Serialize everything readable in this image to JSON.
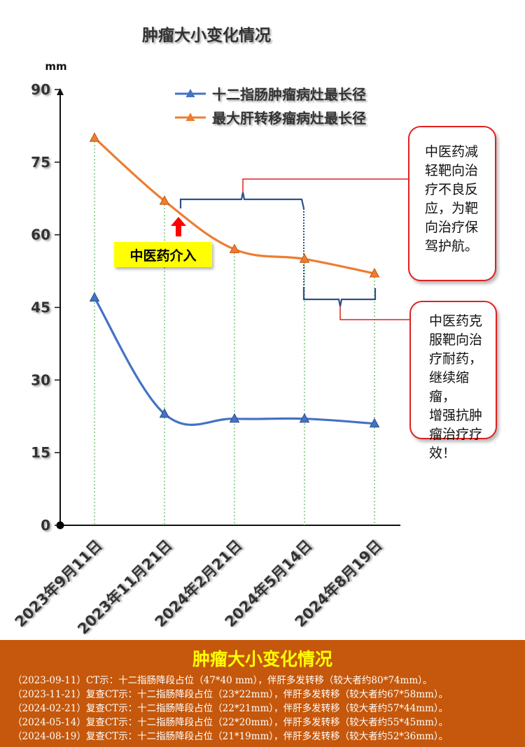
{
  "chart_data": {
    "type": "line",
    "title": "肿瘤大小变化情况",
    "ylabel": "mm",
    "ylim": [
      0,
      90
    ],
    "yticks": [
      0,
      15,
      30,
      45,
      60,
      75,
      90
    ],
    "categories": [
      "2023年9月11日",
      "2023年11月21日",
      "2024年2月21日",
      "2024年5月14日",
      "2024年8月19日"
    ],
    "series": [
      {
        "name": "十二指肠肿瘤病灶最长径",
        "color": "#4472c4",
        "values": [
          47,
          23,
          22,
          22,
          21
        ]
      },
      {
        "name": "最大肝转移瘤病灶最长径",
        "color": "#ed7d31",
        "values": [
          80,
          67,
          57,
          55,
          52
        ]
      }
    ],
    "legend_position": "top-center",
    "grid": false,
    "annotations": {
      "tcm_intervention": "中医药介入",
      "callout_1": "中医药减\n轻靶向治\n疗不良反\n应，为靶\n向治疗保\n驾护航。",
      "callout_2": "中医药克\n服靶向治\n疗耐药，\n继续缩瘤，\n增强抗肿\n瘤治疗疗\n效！"
    }
  },
  "panel": {
    "title": "肿瘤大小变化情况",
    "lines": [
      "（2023-09-11）CT示：十二指肠降段占位（47*40 mm），伴肝多发转移（较大者约80*74mm）。",
      "（2023-11-21）复查CT示：十二指肠降段占位（23*22mm），伴肝多发转移（较大者约67*58mm）。",
      "（2024-02-21）复查CT示：十二指肠降段占位（22*21mm），伴肝多发转移（较大者约57*44mm）。",
      "（2024-05-14）复查CT示：十二指肠降段占位（22*20mm），伴肝多发转移（较大者约55*45mm）。",
      "（2024-08-19）复查CT示：十二指肠降段占位（21*19mm），伴肝多发转移（较大者约52*36mm）。"
    ]
  }
}
